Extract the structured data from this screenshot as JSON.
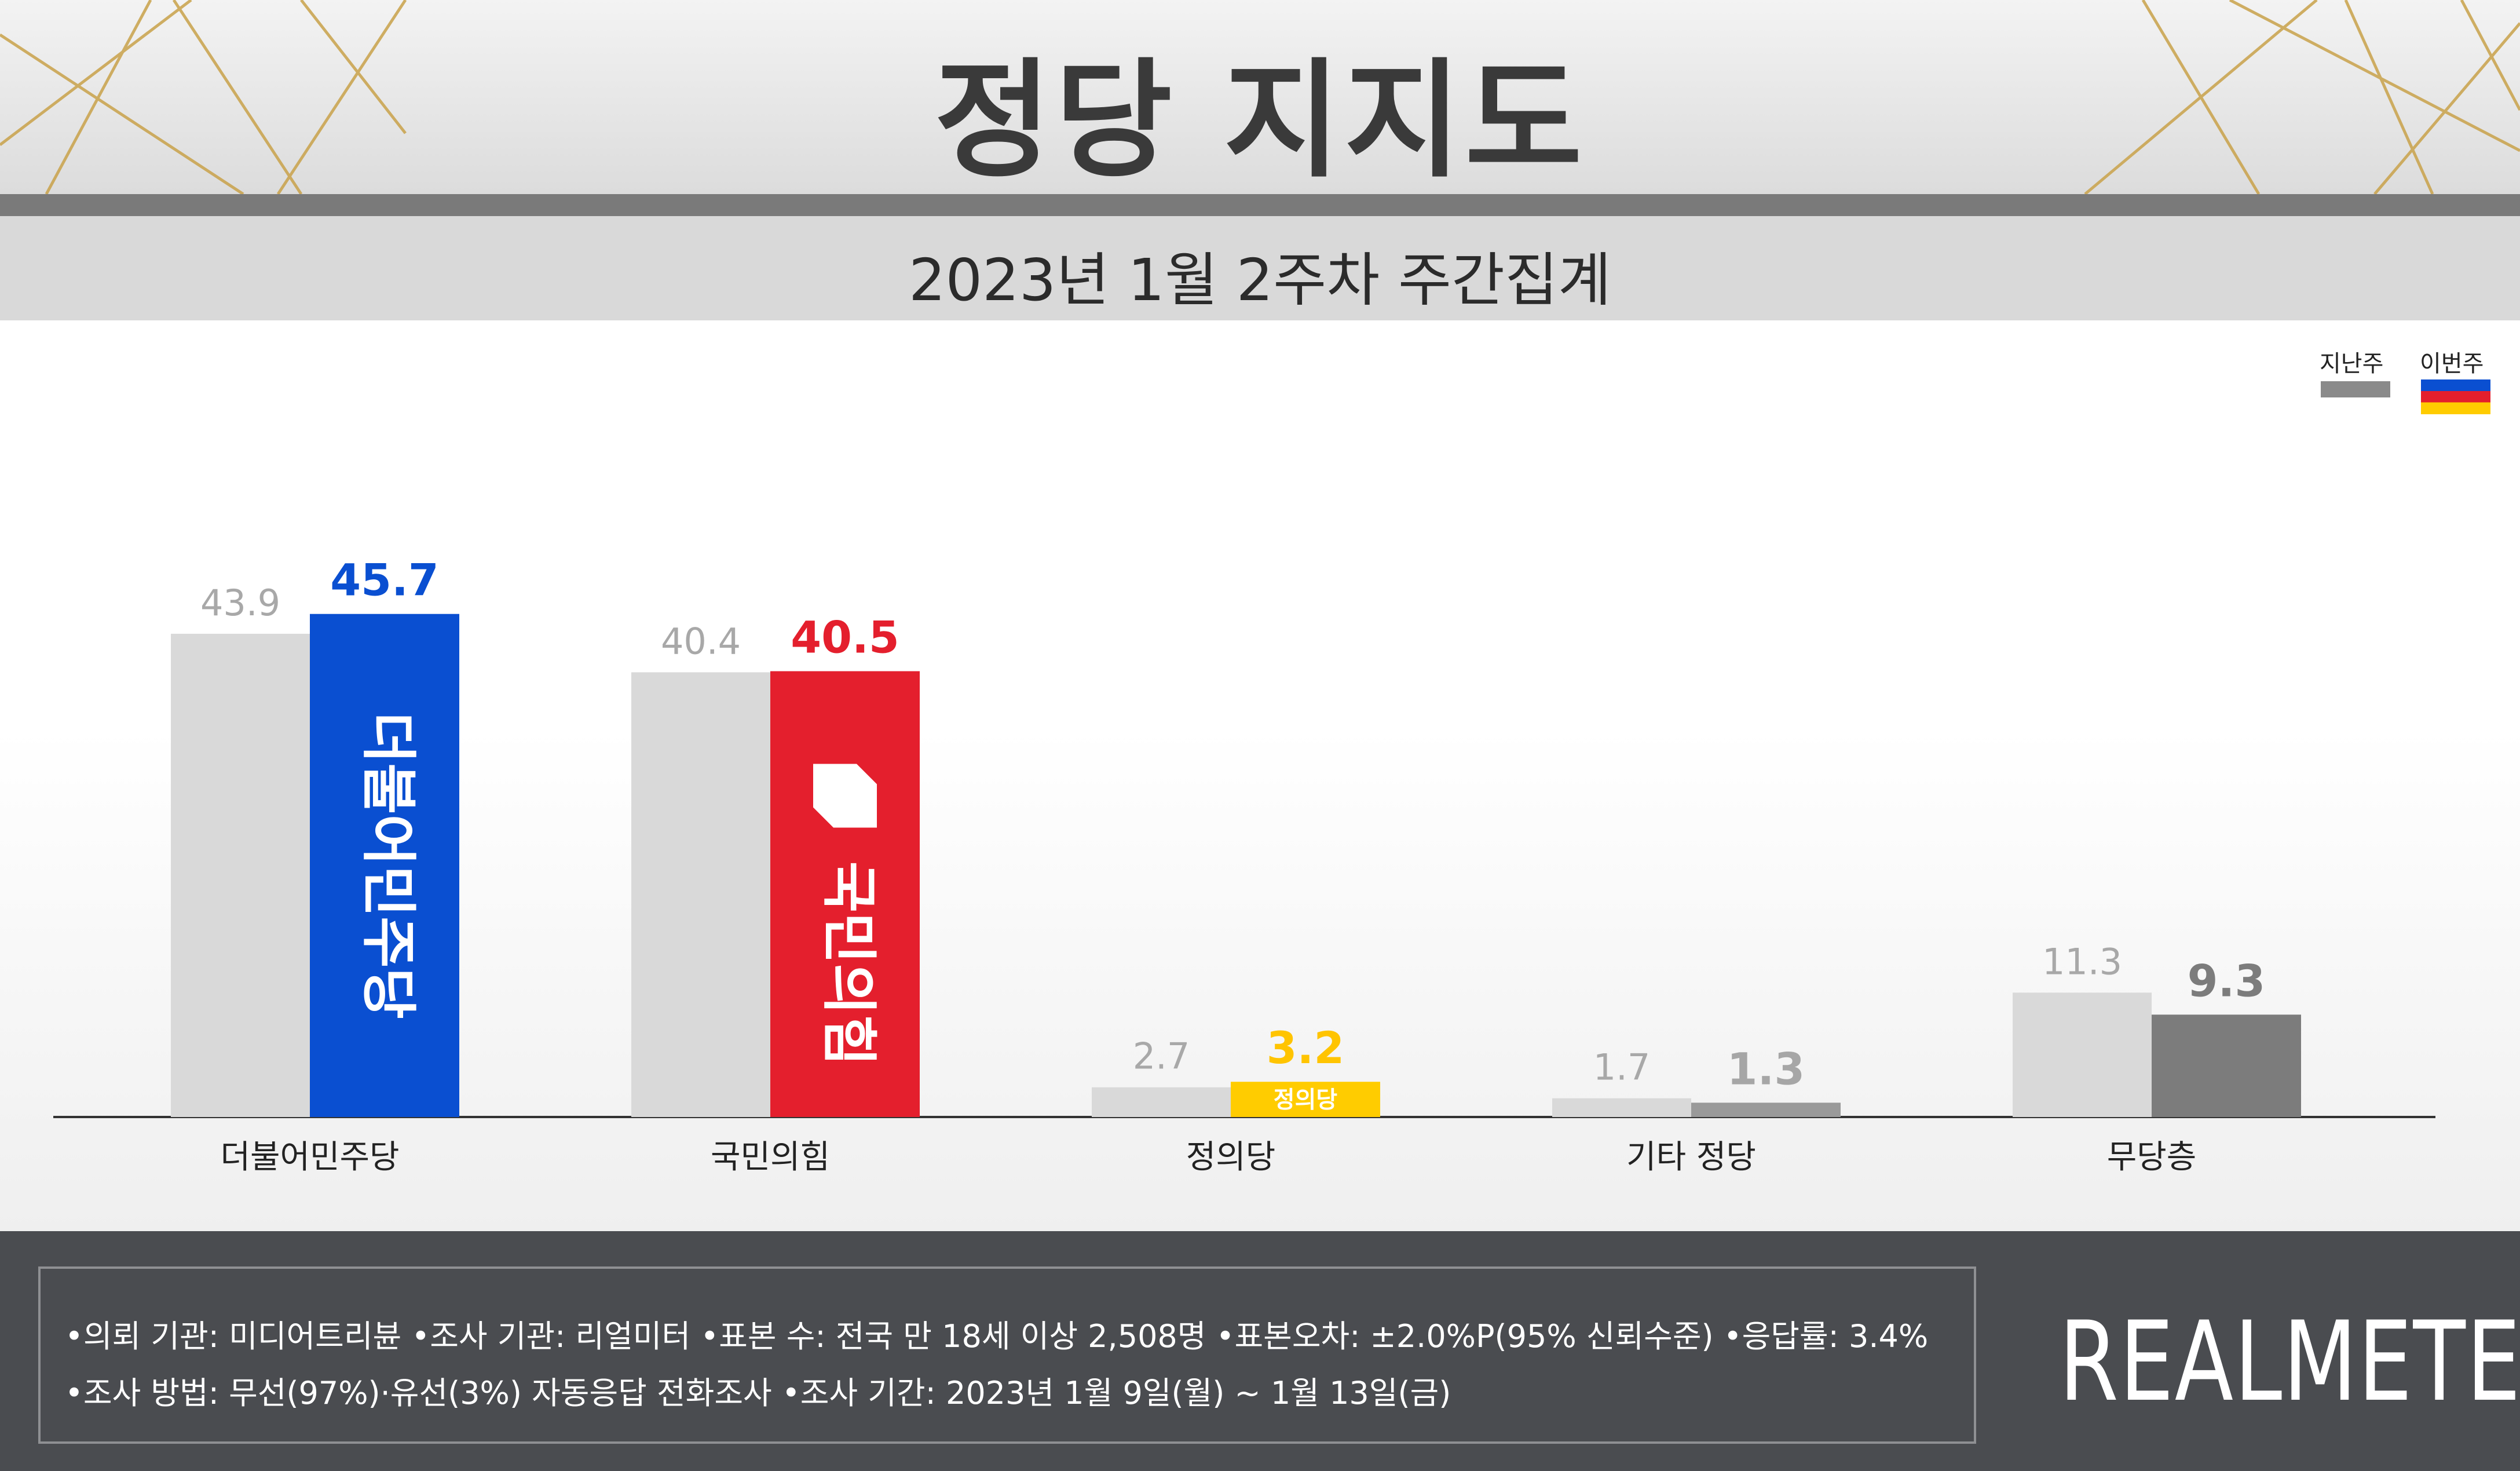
{
  "title": "정당 지지도",
  "subtitle": "2023년 1월 2주차 주간집계",
  "legend": {
    "previous_label": "지난주",
    "current_label": "이번주",
    "previous_color": "#8a8a8a",
    "current_colors": [
      "#0a4fd1",
      "#e41f2d",
      "#ffcc00"
    ]
  },
  "chart_data": {
    "type": "bar",
    "categories": [
      "더불어민주당",
      "국민의힘",
      "정의당",
      "기타 정당",
      "무당층"
    ],
    "series": [
      {
        "name": "지난주",
        "values": [
          43.9,
          40.4,
          2.7,
          1.7,
          11.3
        ]
      },
      {
        "name": "이번주",
        "values": [
          45.7,
          40.5,
          3.2,
          1.3,
          9.3
        ]
      }
    ],
    "bar_colors_current": [
      "#0a4fd1",
      "#e41f2d",
      "#ffcc00",
      "#9a9a9a",
      "#7c7c7c"
    ],
    "value_label_colors_current": [
      "#0a4fd1",
      "#e41f2d",
      "#ffc400",
      "#a6a6a6",
      "#7c7c7c"
    ],
    "bar_color_previous": "#d9d9d9",
    "bar_texts": [
      "더불어민주당",
      "국민의힘",
      "정의당",
      "",
      ""
    ],
    "ylim": [
      0,
      50
    ],
    "grid": false,
    "legend_position": "top-right"
  },
  "footer": {
    "line1": "•의뢰 기관: 미디어트리뷴  •조사 기관: 리얼미터 •표본 수: 전국 만 18세 이상 2,508명 •표본오차: ±2.0%P(95% 신뢰수준) •응답률: 3.4%",
    "line2": "•조사 방법: 무선(97%)·유선(3%) 자동응답 전화조사 •조사 기간: 2023년 1월 9일(월) ~ 1월 13일(금)",
    "brand": "REALMETER"
  }
}
